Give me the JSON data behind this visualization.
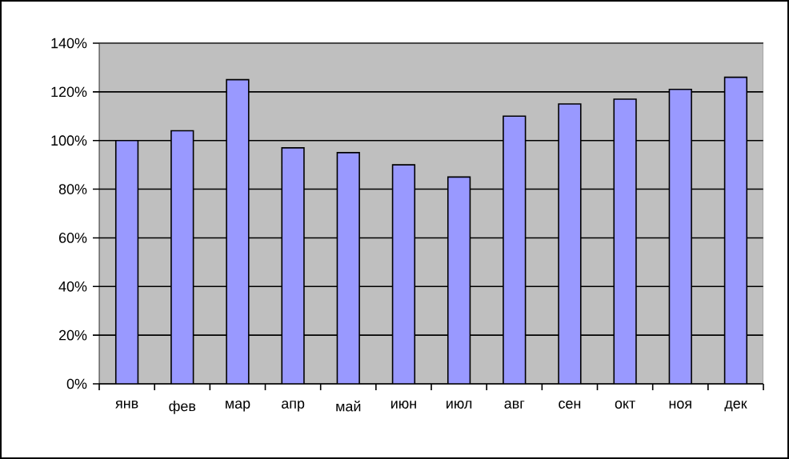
{
  "chart_data": {
    "type": "bar",
    "categories": [
      "янв",
      "фев",
      "мар",
      "апр",
      "май",
      "июн",
      "июл",
      "авг",
      "сен",
      "окт",
      "ноя",
      "дек"
    ],
    "values": [
      100,
      104,
      125,
      97,
      95,
      90,
      85,
      110,
      115,
      117,
      121,
      126
    ],
    "color": "#9999ff",
    "ylim": [
      0,
      140
    ],
    "yticks": [
      {
        "value": 0,
        "label": "0%"
      },
      {
        "value": 20,
        "label": "20%"
      },
      {
        "value": 40,
        "label": "40%"
      },
      {
        "value": 60,
        "label": "60%"
      },
      {
        "value": 80,
        "label": "80%"
      },
      {
        "value": 100,
        "label": "100%"
      },
      {
        "value": 120,
        "label": "120%"
      },
      {
        "value": 140,
        "label": "140%"
      }
    ],
    "grid": "y"
  }
}
